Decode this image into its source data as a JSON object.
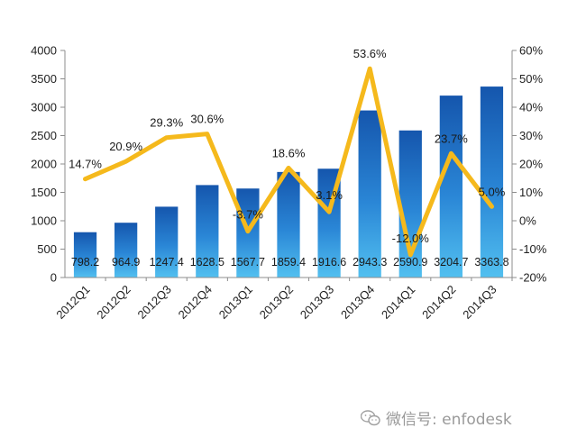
{
  "chart_data": {
    "type": "bar",
    "categories": [
      "2012Q1",
      "2012Q2",
      "2012Q3",
      "2012Q4",
      "2013Q1",
      "2013Q2",
      "2013Q3",
      "2013Q4",
      "2014Q1",
      "2014Q2",
      "2014Q3"
    ],
    "series": [
      {
        "type": "bar",
        "axis": "left",
        "values": [
          798.2,
          964.9,
          1247.4,
          1628.5,
          1567.7,
          1859.4,
          1916.6,
          2943.3,
          2590.9,
          3204.7,
          3363.8
        ],
        "labels": [
          "798.2",
          "964.9",
          "1247.4",
          "1628.5",
          "1567.7",
          "1859.4",
          "1916.6",
          "2943.3",
          "2590.9",
          "3204.7",
          "3363.8"
        ],
        "color": "#1f6fc5"
      },
      {
        "type": "line",
        "axis": "right",
        "values": [
          14.7,
          20.9,
          29.3,
          30.6,
          -3.7,
          18.6,
          3.1,
          53.6,
          -12.0,
          23.7,
          5.0
        ],
        "labels": [
          "14.7%",
          "20.9%",
          "29.3%",
          "30.6%",
          "-3.7%",
          "18.6%",
          "3.1%",
          "53.6%",
          "-12.0%",
          "23.7%",
          "5.0%"
        ],
        "color": "#f5b91c"
      }
    ],
    "ylim": [
      0,
      4000
    ],
    "y_ticks": [
      "0",
      "500",
      "1000",
      "1500",
      "2000",
      "2500",
      "3000",
      "3500",
      "4000"
    ],
    "y2lim": [
      -20,
      60
    ],
    "y2_ticks": [
      "-20%",
      "-10%",
      "0%",
      "10%",
      "20%",
      "30%",
      "40%",
      "50%",
      "60%"
    ],
    "grid": false,
    "legend": "none"
  },
  "watermark": {
    "text": "微信号: enfodesk",
    "icon": "wechat-icon"
  }
}
